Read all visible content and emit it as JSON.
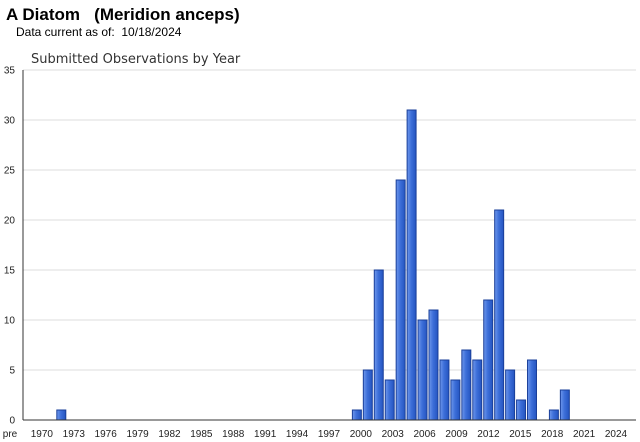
{
  "header": {
    "species_name": "A Diatom   (Meridion anceps)",
    "data_current": "Data current as of:  10/18/2024"
  },
  "chart_data": {
    "type": "bar",
    "title": "Submitted Observations by Year",
    "xlabel": "",
    "ylabel": "",
    "ylim": [
      0,
      35
    ],
    "yticks": [
      0,
      5,
      10,
      15,
      20,
      25,
      30,
      35
    ],
    "grid": true,
    "legend": "none",
    "bar_color": "#3d6fd9",
    "bar_edge_color": "#1a3f99",
    "categories": [
      "pre",
      "1970",
      "1971",
      "1972",
      "1973",
      "1974",
      "1975",
      "1976",
      "1977",
      "1978",
      "1979",
      "1980",
      "1981",
      "1982",
      "1983",
      "1984",
      "1985",
      "1986",
      "1987",
      "1988",
      "1989",
      "1990",
      "1991",
      "1992",
      "1993",
      "1994",
      "1995",
      "1996",
      "1997",
      "1998",
      "1999",
      "2000",
      "2001",
      "2002",
      "2003",
      "2004",
      "2005",
      "2006",
      "2007",
      "2008",
      "2009",
      "2010",
      "2011",
      "2012",
      "2013",
      "2014",
      "2015",
      "2016",
      "2017",
      "2018",
      "2019",
      "2020",
      "2021",
      "2022",
      "2023",
      "2024"
    ],
    "values": [
      0,
      0,
      0,
      1,
      0,
      0,
      0,
      0,
      0,
      0,
      0,
      0,
      0,
      0,
      0,
      0,
      0,
      0,
      0,
      0,
      0,
      0,
      0,
      0,
      0,
      0,
      0,
      0,
      0,
      0,
      1,
      5,
      15,
      4,
      24,
      31,
      10,
      11,
      6,
      4,
      7,
      6,
      12,
      21,
      5,
      2,
      6,
      0,
      1,
      3,
      0,
      0,
      0,
      0,
      0,
      0
    ],
    "xtick_labels": [
      "pre",
      "1970",
      "1973",
      "1976",
      "1979",
      "1982",
      "1985",
      "1988",
      "1991",
      "1994",
      "1997",
      "2000",
      "2003",
      "2006",
      "2009",
      "2012",
      "2015",
      "2018",
      "2021",
      "2024"
    ]
  }
}
